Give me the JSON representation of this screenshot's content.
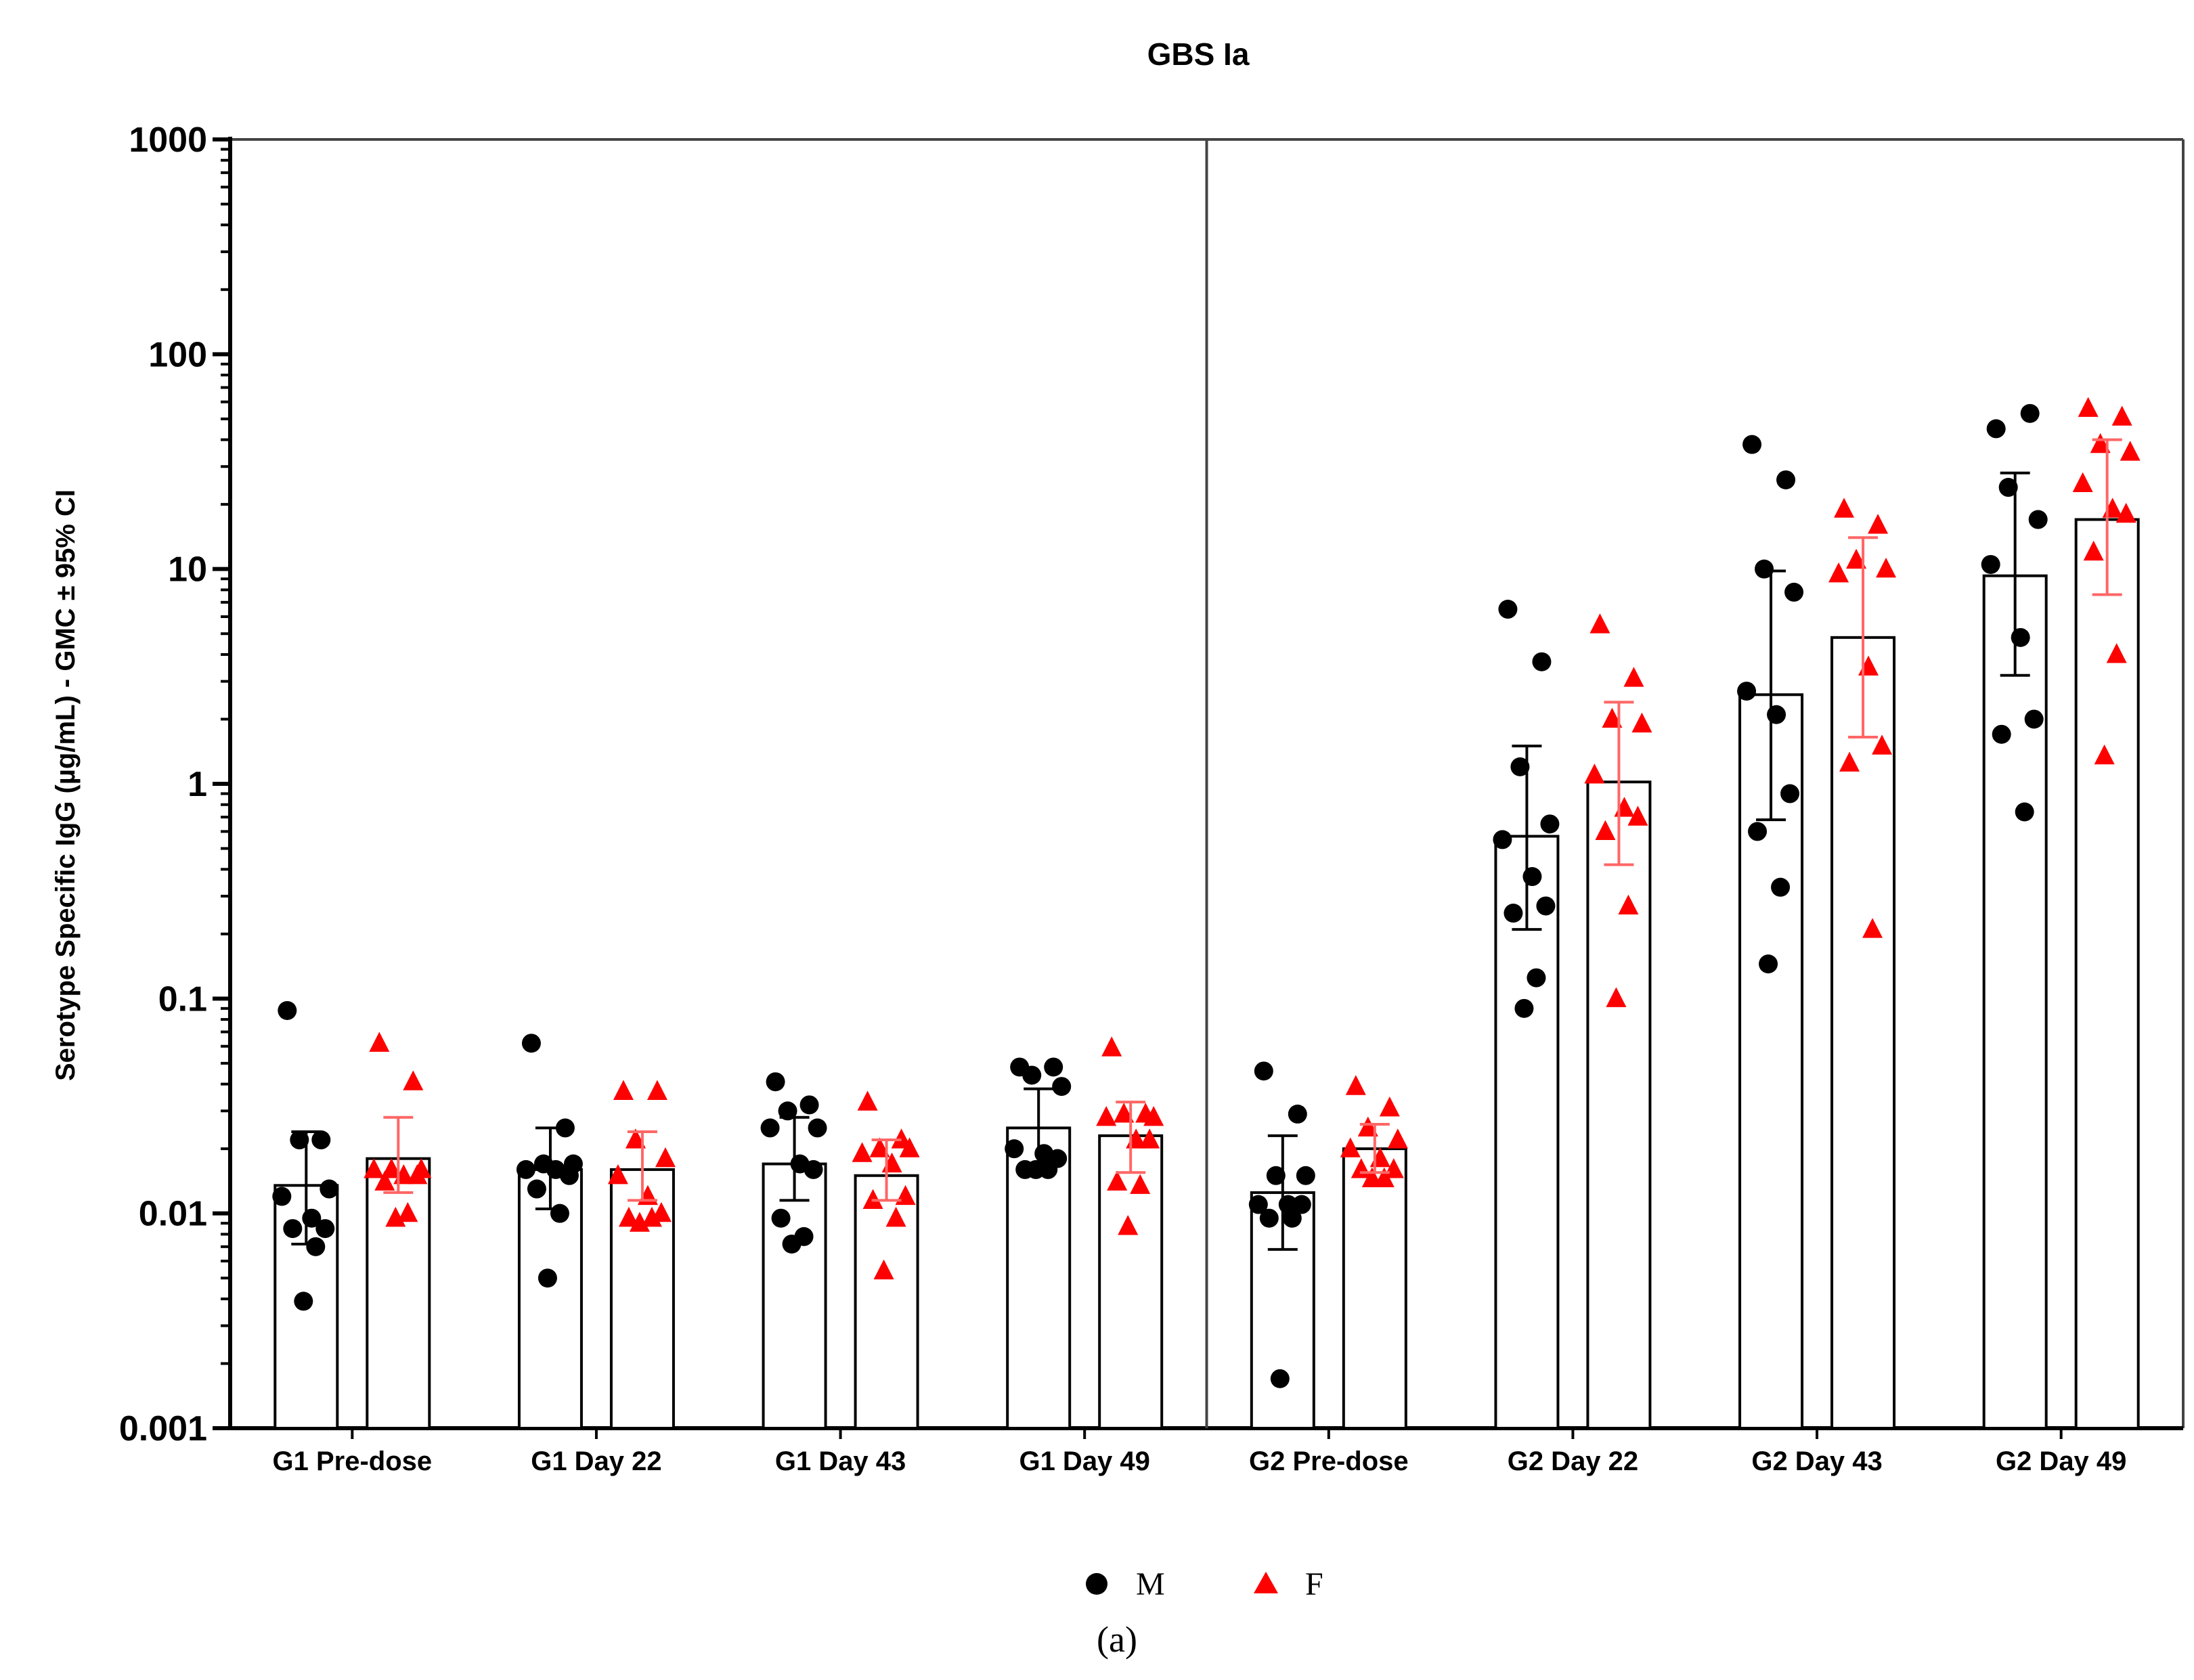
{
  "chart_data": {
    "type": "bar",
    "scale": "log",
    "title": "GBS Ia",
    "ylabel": "Serotype Specific IgG (µg/mL) - GMC ± 95% CI",
    "xlabel": "",
    "ylim": [
      0.001,
      1000
    ],
    "y_ticks": [
      {
        "value": 1000,
        "label": "1000"
      },
      {
        "value": 100,
        "label": "100"
      },
      {
        "value": 10,
        "label": "10"
      },
      {
        "value": 1,
        "label": "1"
      },
      {
        "value": 0.1,
        "label": "0.1"
      },
      {
        "value": 0.01,
        "label": "0.01"
      },
      {
        "value": 0.001,
        "label": "0.001"
      }
    ],
    "categories": [
      "G1 Pre-dose",
      "G1 Day 22",
      "G1 Day 43",
      "G1 Day 49",
      "G2 Pre-dose",
      "G2 Day 22",
      "G2 Day 43",
      "G2 Day 49"
    ],
    "group_divider_after_category": 3,
    "series": [
      {
        "name": "M",
        "marker": "circle",
        "color": "#000000",
        "errorbar_color": "#000000",
        "gmc": [
          0.0135,
          0.016,
          0.017,
          0.025,
          0.0125,
          0.57,
          2.6,
          9.3
        ],
        "ci_low": [
          0.0072,
          0.0105,
          0.0115,
          0.0165,
          0.0068,
          0.21,
          0.68,
          3.2
        ],
        "ci_high": [
          0.024,
          0.025,
          0.028,
          0.038,
          0.023,
          1.5,
          9.8,
          28
        ],
        "points": [
          [
            0.088,
            0.022,
            0.022,
            0.013,
            0.012,
            0.0095,
            0.0085,
            0.0085,
            0.007,
            0.0039
          ],
          [
            0.062,
            0.025,
            0.017,
            0.017,
            0.016,
            0.016,
            0.015,
            0.013,
            0.01,
            0.005
          ],
          [
            0.041,
            0.032,
            0.03,
            0.025,
            0.025,
            0.017,
            0.016,
            0.0095,
            0.0078,
            0.0072
          ],
          [
            0.048,
            0.048,
            0.044,
            0.039,
            0.02,
            0.019,
            0.018,
            0.016,
            0.016,
            0.016
          ],
          [
            0.046,
            0.029,
            0.015,
            0.015,
            0.011,
            0.011,
            0.011,
            0.0095,
            0.0095,
            0.0017
          ],
          [
            6.5,
            3.7,
            1.2,
            0.65,
            0.55,
            0.37,
            0.27,
            0.25,
            0.125,
            0.09
          ],
          [
            38,
            26,
            10,
            7.8,
            2.7,
            2.1,
            0.9,
            0.6,
            0.33,
            0.145
          ],
          [
            45,
            53,
            24,
            17,
            10.5,
            4.8,
            2.0,
            1.7,
            0.74
          ]
        ]
      },
      {
        "name": "F",
        "marker": "triangle",
        "color": "#ff0000",
        "errorbar_color": "#ff6666",
        "gmc": [
          0.018,
          0.016,
          0.015,
          0.023,
          0.02,
          1.02,
          4.8,
          17
        ],
        "ci_low": [
          0.0125,
          0.0115,
          0.0115,
          0.0155,
          0.0155,
          0.42,
          1.65,
          7.6
        ],
        "ci_high": [
          0.028,
          0.024,
          0.022,
          0.033,
          0.026,
          2.4,
          14,
          40
        ],
        "points": [
          [
            0.062,
            0.041,
            0.016,
            0.016,
            0.016,
            0.015,
            0.015,
            0.014,
            0.01,
            0.0095
          ],
          [
            0.037,
            0.037,
            0.022,
            0.018,
            0.015,
            0.012,
            0.01,
            0.0095,
            0.0095,
            0.009
          ],
          [
            0.033,
            0.022,
            0.02,
            0.02,
            0.019,
            0.017,
            0.012,
            0.0115,
            0.0095,
            0.0054
          ],
          [
            0.059,
            0.029,
            0.029,
            0.028,
            0.028,
            0.022,
            0.022,
            0.014,
            0.0135,
            0.0087
          ],
          [
            0.039,
            0.031,
            0.025,
            0.022,
            0.02,
            0.018,
            0.016,
            0.016,
            0.0145,
            0.0145
          ],
          [
            5.5,
            3.1,
            2.0,
            1.9,
            1.1,
            0.77,
            0.7,
            0.6,
            0.27,
            0.1
          ],
          [
            19,
            16,
            11,
            10,
            9.5,
            3.5,
            1.5,
            1.25,
            0.21
          ],
          [
            56,
            51,
            38,
            35,
            25,
            19,
            18,
            12,
            4.0,
            1.35
          ]
        ]
      }
    ],
    "legend": {
      "placement": "bottom-center",
      "entries": [
        {
          "label": "M",
          "marker": "circle",
          "color": "#000000"
        },
        {
          "label": "F",
          "marker": "triangle",
          "color": "#ff0000"
        }
      ]
    },
    "caption": "(a)"
  }
}
